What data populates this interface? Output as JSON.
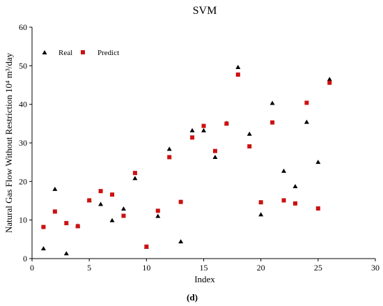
{
  "chart_data": {
    "type": "scatter",
    "title": "SVM",
    "xlabel": "Index",
    "ylabel": "Natural Gas Flow Without Restriction 10⁴ m³/day",
    "caption": "(d)",
    "xlim": [
      0,
      30
    ],
    "ylim": [
      0,
      60
    ],
    "xticks": [
      0,
      5,
      10,
      15,
      20,
      25,
      30
    ],
    "yticks": [
      0,
      10,
      20,
      30,
      40,
      50,
      60
    ],
    "grid": false,
    "legend_position": "top-left",
    "series": [
      {
        "name": "Real",
        "marker": "triangle",
        "color": "#000000",
        "x": [
          1,
          2,
          3,
          4,
          5,
          6,
          7,
          8,
          9,
          10,
          11,
          12,
          13,
          14,
          15,
          16,
          17,
          18,
          19,
          20,
          21,
          22,
          23,
          24,
          25,
          26
        ],
        "y": [
          2.6,
          18.0,
          1.3,
          8.5,
          15.1,
          14.1,
          9.9,
          12.9,
          20.8,
          3.0,
          11.0,
          28.4,
          4.4,
          33.2,
          33.2,
          26.3,
          35.1,
          49.6,
          32.3,
          11.4,
          40.3,
          22.7,
          18.7,
          35.4,
          25.0,
          46.5
        ]
      },
      {
        "name": "Predict",
        "marker": "square",
        "color": "#cc1111",
        "x": [
          1,
          2,
          3,
          4,
          5,
          6,
          7,
          8,
          9,
          10,
          11,
          12,
          13,
          14,
          15,
          16,
          17,
          18,
          19,
          20,
          21,
          22,
          23,
          24,
          25,
          26
        ],
        "y": [
          8.2,
          12.2,
          9.2,
          8.4,
          15.1,
          17.5,
          16.6,
          11.1,
          22.2,
          3.1,
          12.4,
          26.3,
          14.7,
          31.4,
          34.4,
          27.9,
          35.0,
          47.7,
          29.1,
          14.6,
          35.3,
          15.1,
          14.3,
          40.4,
          13.0,
          45.6
        ]
      }
    ]
  }
}
